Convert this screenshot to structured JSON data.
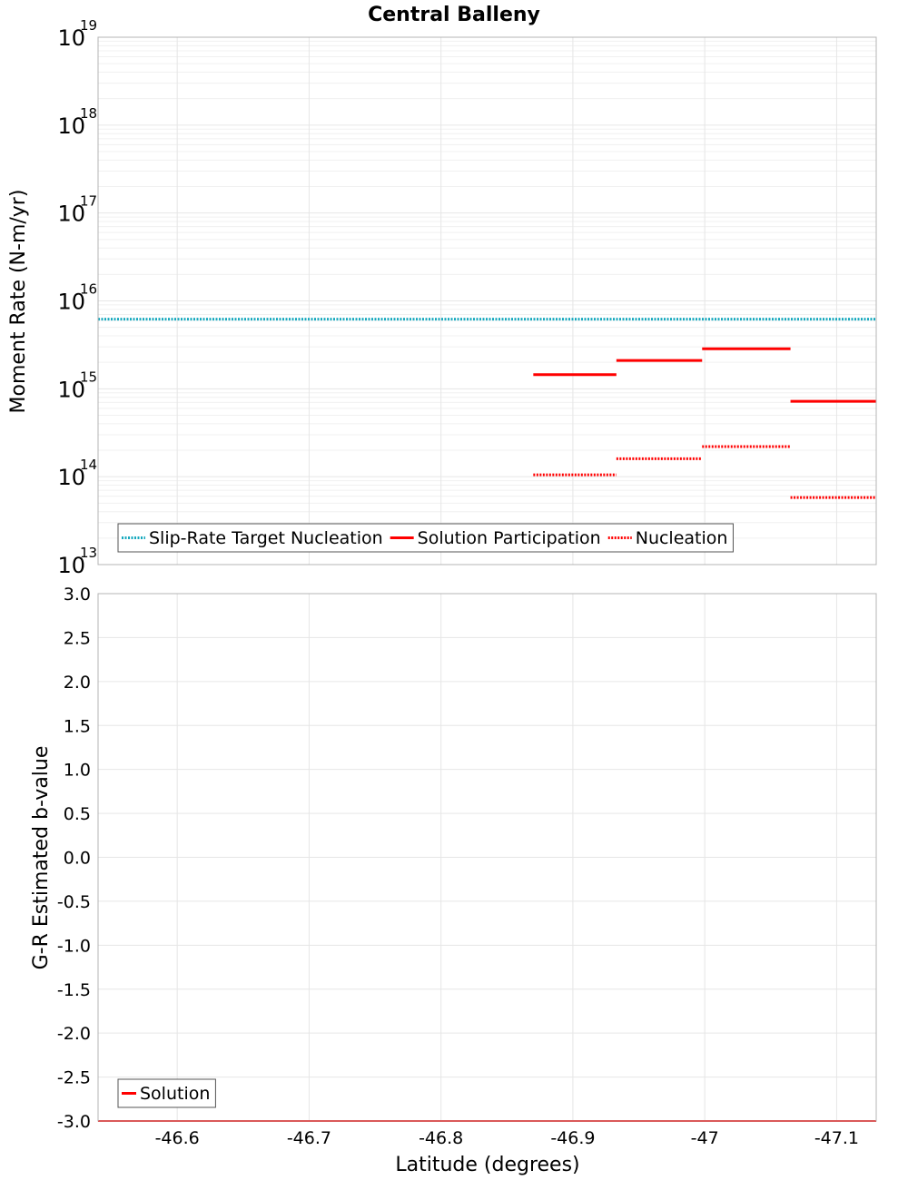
{
  "colors": {
    "target": "#17a9be",
    "solution": "#ff0000",
    "grid": "#e6e6e6",
    "frame": "#b4b4b4"
  },
  "chart_data": [
    {
      "type": "line",
      "title": "Central Balleny",
      "ylabel": "Moment Rate (N-m/yr)",
      "xlabel": "",
      "yscale": "log",
      "ylim": [
        10000000000000.0,
        1e+19
      ],
      "xlim": [
        -46.54,
        -47.13
      ],
      "x_reversed": true,
      "yticks": [
        {
          "base": "10",
          "exp": "13"
        },
        {
          "base": "10",
          "exp": "14"
        },
        {
          "base": "10",
          "exp": "15"
        },
        {
          "base": "10",
          "exp": "16"
        },
        {
          "base": "10",
          "exp": "17"
        },
        {
          "base": "10",
          "exp": "18"
        },
        {
          "base": "10",
          "exp": "19"
        }
      ],
      "legend": "bottom-left",
      "series": [
        {
          "name": "Slip-Rate Target Nucleation",
          "style": "dotted",
          "color": "#17a9be",
          "segments": [
            {
              "x0": -46.54,
              "x1": -47.13,
              "y": 6200000000000000.0
            }
          ]
        },
        {
          "name": "Solution Participation",
          "style": "solid",
          "color": "#ff0000",
          "segments": [
            {
              "x0": -46.87,
              "x1": -46.933,
              "y": 1450000000000000.0
            },
            {
              "x0": -46.933,
              "x1": -46.998,
              "y": 2100000000000000.0
            },
            {
              "x0": -46.998,
              "x1": -47.065,
              "y": 2850000000000000.0
            },
            {
              "x0": -47.065,
              "x1": -47.13,
              "y": 720000000000000.0
            }
          ]
        },
        {
          "name": "Nucleation",
          "style": "dotted",
          "color": "#ff0000",
          "segments": [
            {
              "x0": -46.87,
              "x1": -46.933,
              "y": 105000000000000.0
            },
            {
              "x0": -46.933,
              "x1": -46.998,
              "y": 160000000000000.0
            },
            {
              "x0": -46.998,
              "x1": -47.065,
              "y": 220000000000000.0
            },
            {
              "x0": -47.065,
              "x1": -47.13,
              "y": 58000000000000.0
            }
          ]
        }
      ]
    },
    {
      "type": "line",
      "title": "",
      "ylabel": "G-R Estimated b-value",
      "xlabel": "Latitude (degrees)",
      "ylim": [
        -3.0,
        3.0
      ],
      "xlim": [
        -46.54,
        -47.13
      ],
      "x_reversed": true,
      "yticks": [
        "3.0",
        "2.5",
        "2.0",
        "1.5",
        "1.0",
        "0.5",
        "0.0",
        "-0.5",
        "-1.0",
        "-1.5",
        "-2.0",
        "-2.5",
        "-3.0"
      ],
      "xticks": [
        "-46.6",
        "-46.7",
        "-46.8",
        "-46.9",
        "-47",
        "-47.1"
      ],
      "xtick_values": [
        -46.6,
        -46.7,
        -46.8,
        -46.9,
        -47.0,
        -47.1
      ],
      "legend": "bottom-left",
      "series": [
        {
          "name": "Solution",
          "style": "solid",
          "color": "#ff0000",
          "segments": [
            {
              "x0": -46.54,
              "x1": -47.13,
              "y": -3.0
            }
          ]
        }
      ]
    }
  ]
}
